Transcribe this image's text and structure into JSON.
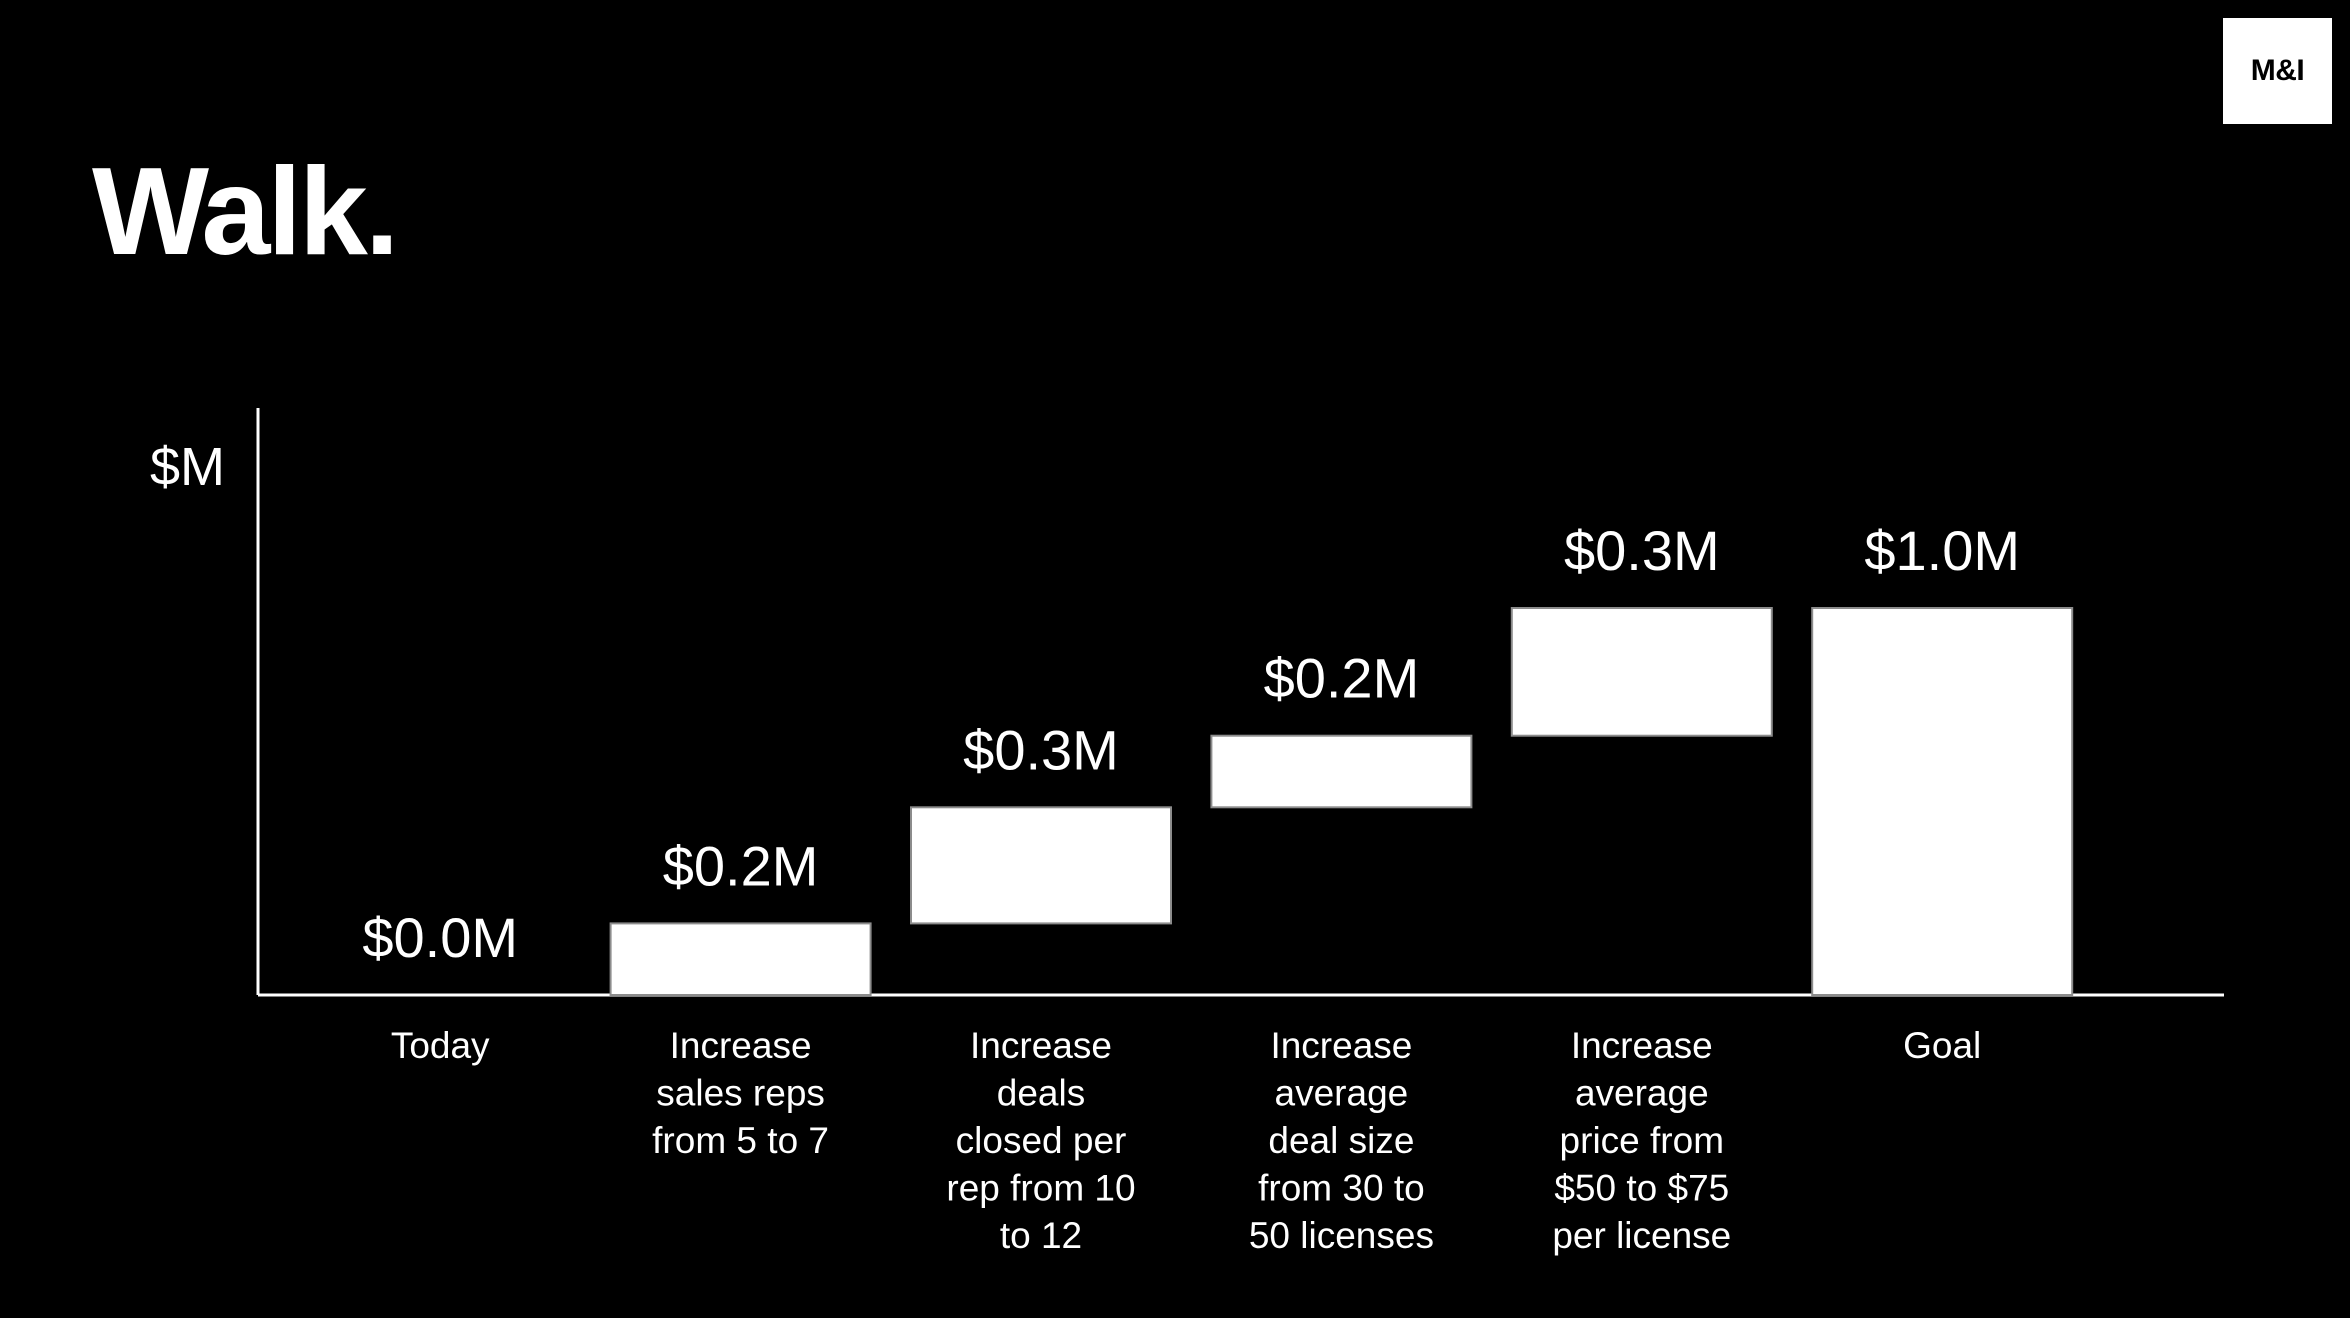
{
  "slide": {
    "title": "Walk.",
    "logo_text": "M&I"
  },
  "colors": {
    "background": "#000000",
    "foreground": "#ffffff",
    "bar_fill": "#ffffff",
    "bar_stroke": "#8c8c8c"
  },
  "chart_data": {
    "type": "bar",
    "subtype": "waterfall",
    "ylabel": "$M",
    "xlabel": "",
    "title": "",
    "ylim": [
      0,
      1.34
    ],
    "grid": false,
    "legend": "none",
    "categories": [
      [
        "Today"
      ],
      [
        "Increase",
        "sales reps",
        "from 5 to 7"
      ],
      [
        "Increase",
        "deals",
        "closed per",
        "rep from 10",
        "to 12"
      ],
      [
        "Increase",
        "average",
        "deal size",
        "from 30 to",
        "50 licenses"
      ],
      [
        "Increase",
        "average",
        "price from",
        "$50 to $75",
        "per license"
      ],
      [
        "Goal"
      ]
    ],
    "values": [
      0.0,
      0.2,
      0.3,
      0.2,
      0.3,
      1.0
    ],
    "value_labels": [
      "$0.0M",
      "$0.2M",
      "$0.3M",
      "$0.2M",
      "$0.3M",
      "$1.0M"
    ],
    "bar_kind": [
      "total",
      "delta",
      "delta",
      "delta",
      "delta",
      "total"
    ],
    "bar_ranges": [
      [
        0.0,
        0.0
      ],
      [
        0.0,
        0.185
      ],
      [
        0.185,
        0.485
      ],
      [
        0.485,
        0.67
      ],
      [
        0.67,
        1.0
      ],
      [
        0.0,
        1.0
      ]
    ]
  }
}
